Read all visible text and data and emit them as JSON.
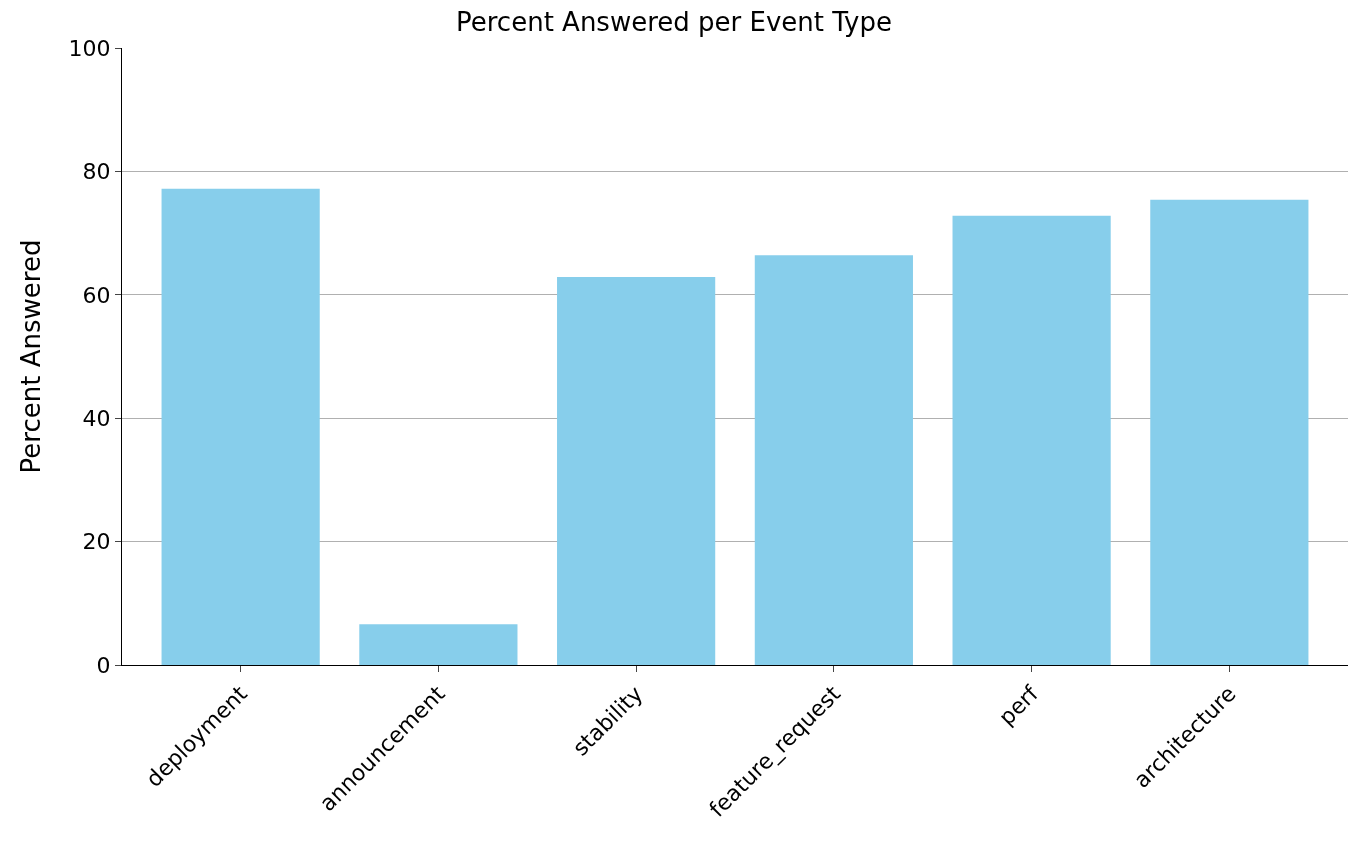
{
  "chart_data": {
    "type": "bar",
    "title": "Percent Answered per Event Type",
    "ylabel": "Percent Answered",
    "categories": [
      "deployment",
      "announcement",
      "stability",
      "feature_request",
      "perf",
      "architecture"
    ],
    "values": [
      77.2,
      6.6,
      62.9,
      66.4,
      72.8,
      75.4
    ],
    "color": "#87ceeb",
    "ylim": [
      0,
      100
    ],
    "yticks": [
      0,
      20,
      40,
      60,
      80,
      100
    ],
    "grid": "y"
  }
}
